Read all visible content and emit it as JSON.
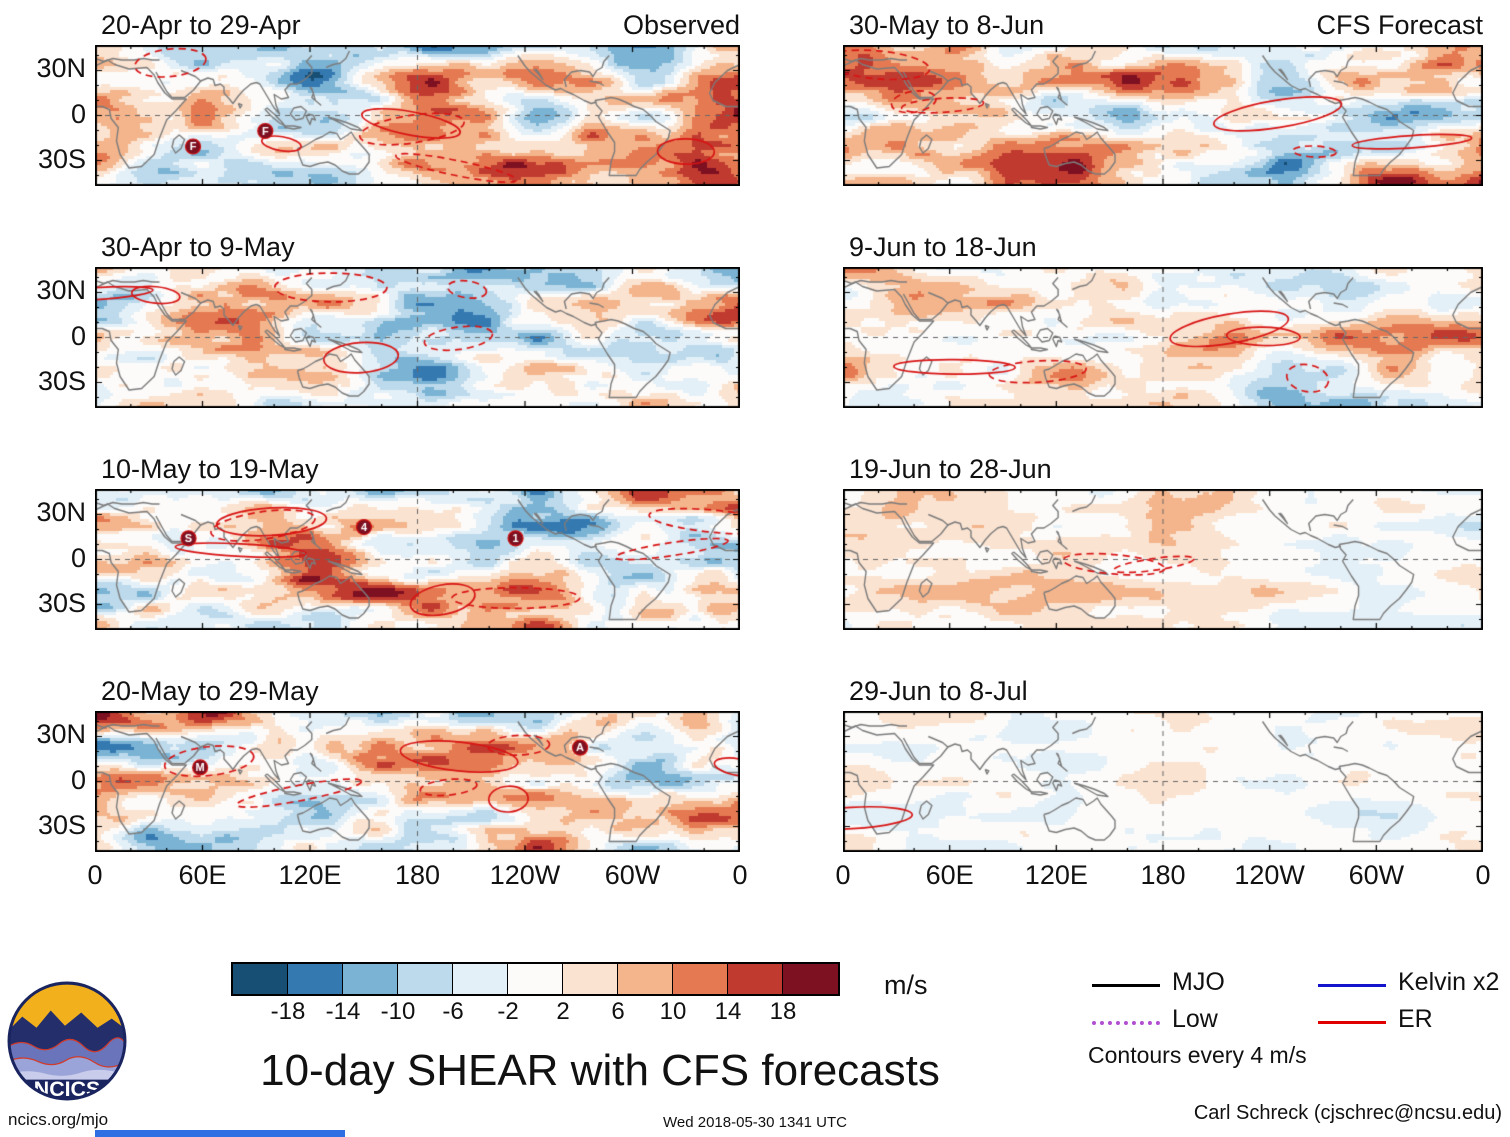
{
  "chart_data": {
    "type": "heatmap",
    "title": "10-day SHEAR with CFS forecasts",
    "columns": [
      {
        "header": "Observed",
        "panels": [
          {
            "label": "20-Apr to 29-Apr",
            "intensity": "strong",
            "storms": [
              {
                "label": "F",
                "x": 0.152,
                "y": 0.72
              },
              {
                "label": "F",
                "x": 0.264,
                "y": 0.61
              }
            ]
          },
          {
            "label": "30-Apr to 9-May",
            "intensity": "strong",
            "storms": []
          },
          {
            "label": "10-May to 19-May",
            "intensity": "strong",
            "storms": [
              {
                "label": "S",
                "x": 0.145,
                "y": 0.35
              },
              {
                "label": "4",
                "x": 0.417,
                "y": 0.27
              },
              {
                "label": "1",
                "x": 0.652,
                "y": 0.35
              }
            ]
          },
          {
            "label": "20-May to 29-May",
            "intensity": "strong",
            "storms": [
              {
                "label": "M",
                "x": 0.163,
                "y": 0.4
              },
              {
                "label": "A",
                "x": 0.752,
                "y": 0.26
              }
            ]
          }
        ]
      },
      {
        "header": "CFS Forecast",
        "panels": [
          {
            "label": "30-May to 8-Jun",
            "intensity": "strong",
            "storms": []
          },
          {
            "label": "9-Jun to 18-Jun",
            "intensity": "moderate",
            "storms": []
          },
          {
            "label": "19-Jun to 28-Jun",
            "intensity": "weak",
            "storms": []
          },
          {
            "label": "29-Jun to 8-Jul",
            "intensity": "very-weak",
            "storms": []
          }
        ]
      }
    ],
    "x_ticks": [
      "0",
      "60E",
      "120E",
      "180",
      "120W",
      "60W",
      "0"
    ],
    "y_ticks": [
      "30N",
      "0",
      "30S"
    ],
    "colorbar": {
      "levels": [
        "-18",
        "-14",
        "-10",
        "-6",
        "-2",
        "2",
        "6",
        "10",
        "14",
        "18"
      ],
      "colors": [
        "#174e74",
        "#3579b1",
        "#7ab3d4",
        "#bcdaeb",
        "#e4f0f7",
        "#fcfbfa",
        "#fbe3d1",
        "#f4b58c",
        "#e57a52",
        "#c03a30",
        "#7d1021"
      ],
      "units": "m/s"
    },
    "legend": {
      "items": [
        {
          "label": "MJO",
          "color": "#000000",
          "dash": "solid"
        },
        {
          "label": "Kelvin x2",
          "color": "#1414cc",
          "dash": "solid"
        },
        {
          "label": "Low",
          "color": "#b04fd0",
          "dash": "dotted"
        },
        {
          "label": "ER",
          "color": "#e00000",
          "dash": "solid"
        }
      ],
      "note": "Contours every 4 m/s"
    },
    "grid": {
      "dashed_meridian": "180",
      "dashed_parallel": "0"
    }
  },
  "logo": {
    "text": "NCICS"
  },
  "footer": {
    "left": "ncics.org/mjo",
    "center": "Wed 2018-05-30 1341 UTC",
    "right": "Carl Schreck (cjschrec@ncsu.edu)"
  }
}
